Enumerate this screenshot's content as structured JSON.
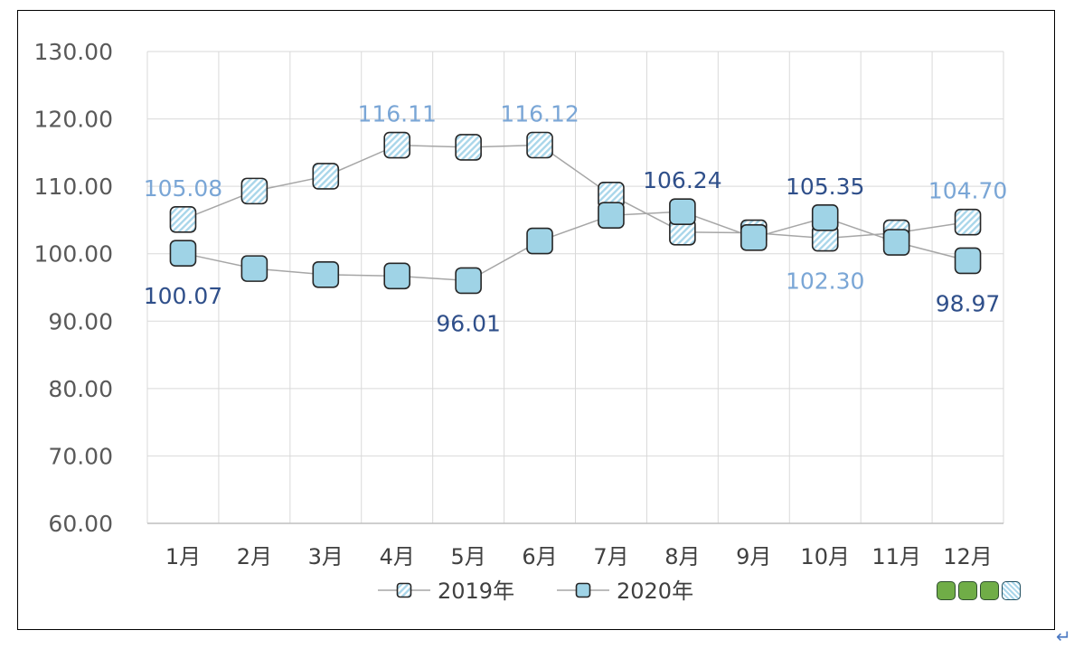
{
  "chart_data": {
    "type": "line",
    "categories": [
      "1月",
      "2月",
      "3月",
      "4月",
      "5月",
      "6月",
      "7月",
      "8月",
      "9月",
      "10月",
      "11月",
      "12月"
    ],
    "ylim": [
      60,
      130
    ],
    "yticks": [
      "60.00",
      "70.00",
      "80.00",
      "90.00",
      "100.00",
      "110.00",
      "120.00",
      "130.00"
    ],
    "grid": true,
    "legend_position": "bottom",
    "series": [
      {
        "name": "2019年",
        "marker": "hatched-square",
        "values": [
          105.08,
          109.3,
          111.5,
          116.11,
          115.8,
          116.12,
          108.7,
          103.2,
          103.1,
          102.3,
          103.1,
          104.7
        ],
        "labels": [
          {
            "index": 0,
            "text": "105.08"
          },
          {
            "index": 3,
            "text": "116.11"
          },
          {
            "index": 5,
            "text": "116.12"
          },
          {
            "index": 9,
            "text": "102.30"
          },
          {
            "index": 11,
            "text": "104.70"
          }
        ]
      },
      {
        "name": "2020年",
        "marker": "solid-square",
        "values": [
          100.07,
          97.8,
          96.9,
          96.7,
          96.01,
          101.9,
          105.7,
          106.24,
          102.4,
          105.35,
          101.7,
          98.97
        ],
        "labels": [
          {
            "index": 0,
            "text": "100.07"
          },
          {
            "index": 4,
            "text": "96.01"
          },
          {
            "index": 7,
            "text": "106.24"
          },
          {
            "index": 9,
            "text": "105.35"
          },
          {
            "index": 11,
            "text": "98.97"
          }
        ]
      }
    ]
  },
  "colors": {
    "grid": "#d9d9d9",
    "axis": "#bfbfbf",
    "line": "#a6a6a6",
    "marker_fill": "#9fd3e6",
    "marker_hatch": "#a9d6ea",
    "marker_stroke": "#262626",
    "label_2019": "#7aa6d6",
    "label_2020": "#2f4f8a",
    "tick_text": "#595959"
  },
  "extra": {
    "return_glyph": "↵"
  }
}
